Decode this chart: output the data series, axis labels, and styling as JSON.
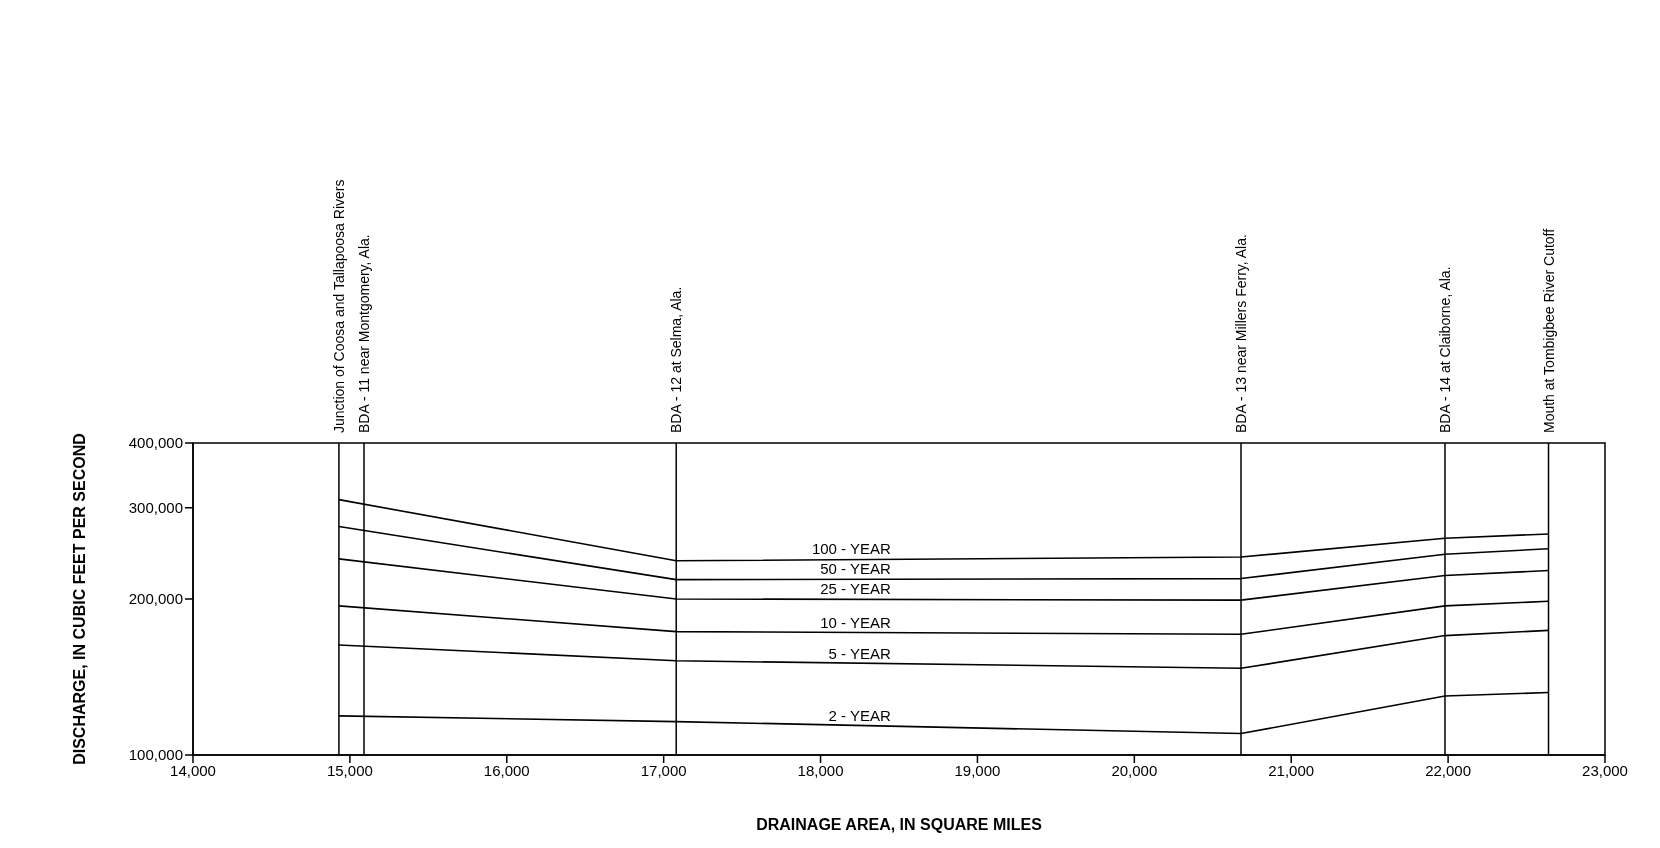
{
  "chart_data": {
    "type": "line",
    "xlabel": "DRAINAGE AREA, IN SQUARE MILES",
    "ylabel": "DISCHARGE, IN CUBIC FEET PER SECOND",
    "x": [
      14930,
      17080,
      20680,
      21980,
      22640
    ],
    "series": [
      {
        "name": "100 - YEAR",
        "color": "#000000",
        "values": [
          311000,
          237000,
          241000,
          262000,
          267000
        ]
      },
      {
        "name": "50 - YEAR",
        "color": "#000000",
        "values": [
          276000,
          218000,
          219000,
          244000,
          250000
        ]
      },
      {
        "name": "25 - YEAR",
        "color": "#000000",
        "values": [
          239000,
          200000,
          199000,
          222000,
          227000
        ]
      },
      {
        "name": "10 - YEAR",
        "color": "#000000",
        "values": [
          194000,
          173000,
          171000,
          194000,
          198000
        ]
      },
      {
        "name": "5 - YEAR",
        "color": "#000000",
        "values": [
          163000,
          152000,
          147000,
          170000,
          174000
        ]
      },
      {
        "name": "2 - YEAR",
        "color": "#000000",
        "values": [
          119000,
          116000,
          110000,
          130000,
          132000
        ]
      }
    ],
    "ref_lines": [
      {
        "axis": "x",
        "value": 14930,
        "label": "Junction of Coosa and Tallapoosa Rivers",
        "color": "#000000"
      },
      {
        "axis": "x",
        "value": 15090,
        "label": "BDA - 11 near Montgomery, Ala.",
        "color": "#000000"
      },
      {
        "axis": "x",
        "value": 17080,
        "label": "BDA - 12 at Selma, Ala.",
        "color": "#000000"
      },
      {
        "axis": "x",
        "value": 20680,
        "label": "BDA - 13 near Millers Ferry, Ala.",
        "color": "#000000"
      },
      {
        "axis": "x",
        "value": 21980,
        "label": "BDA - 14 at Claiborne, Ala.",
        "color": "#000000"
      },
      {
        "axis": "x",
        "value": 22640,
        "label": "Mouth at Tombigbee River Cutoff",
        "color": "#000000"
      }
    ],
    "xlim": [
      14000,
      23000
    ],
    "xticks": [
      {
        "value": 14000,
        "label": "14,000"
      },
      {
        "value": 15000,
        "label": "15,000"
      },
      {
        "value": 16000,
        "label": "16,000"
      },
      {
        "value": 17000,
        "label": "17,000"
      },
      {
        "value": 18000,
        "label": "18,000"
      },
      {
        "value": 19000,
        "label": "19,000"
      },
      {
        "value": 20000,
        "label": "20,000"
      },
      {
        "value": 21000,
        "label": "21,000"
      },
      {
        "value": 22000,
        "label": "22,000"
      },
      {
        "value": 23000,
        "label": "23,000"
      }
    ],
    "ylim": [
      100000,
      400000
    ],
    "yticks": [
      {
        "value": 100000,
        "label": "100,000"
      },
      {
        "value": 200000,
        "label": "200,000"
      },
      {
        "value": 300000,
        "label": "300,000"
      },
      {
        "value": 400000,
        "label": "400,000"
      }
    ],
    "log": true
  }
}
